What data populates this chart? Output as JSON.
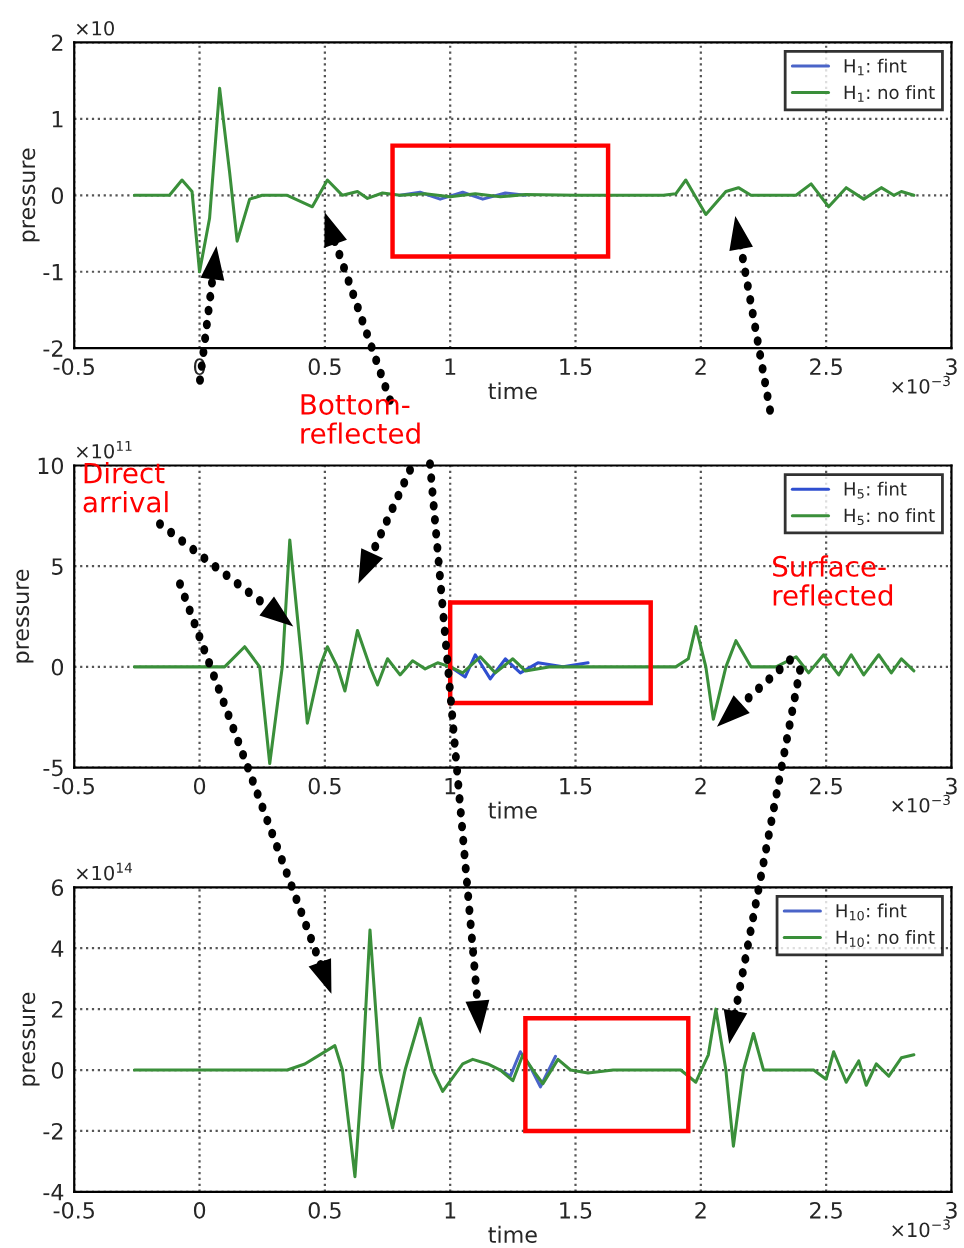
{
  "chart_data": [
    {
      "type": "line",
      "xlabel": "time",
      "ylabel": "pressure",
      "xlim": [
        -0.5,
        3
      ],
      "xticks": [
        -0.5,
        0,
        0.5,
        1,
        1.5,
        2,
        2.5,
        3
      ],
      "ylim": [
        -2,
        2
      ],
      "yticks": [
        -2,
        -1,
        0,
        1,
        2
      ],
      "grid": true,
      "legend": "top right",
      "line_style": "solid",
      "annotations": [
        "×10",
        "×10$^{−3}$"
      ],
      "series": [
        {
          "name": "H$_{1}$: fint",
          "color": "#4a64c8",
          "x": [
            0.8,
            0.88,
            0.96,
            1.05,
            1.13,
            1.22,
            1.3
          ],
          "values": [
            0,
            0.04,
            -0.05,
            0.04,
            -0.05,
            0.03,
            0
          ]
        },
        {
          "name": "H$_{1}$: no fint",
          "color": "#3a8f3a",
          "x": [
            -0.26,
            -0.12,
            -0.07,
            -0.03,
            0.0,
            0.04,
            0.08,
            0.12,
            0.15,
            0.2,
            0.25,
            0.35,
            0.45,
            0.51,
            0.57,
            0.63,
            0.67,
            0.73,
            0.8,
            0.9,
            1.0,
            1.1,
            1.2,
            1.3,
            1.5,
            1.7,
            1.85,
            1.9,
            1.94,
            2.02,
            2.1,
            2.15,
            2.2,
            2.3,
            2.38,
            2.44,
            2.51,
            2.58,
            2.65,
            2.72,
            2.77,
            2.8,
            2.85
          ],
          "values": [
            0,
            0,
            0.2,
            0.05,
            -1.0,
            -0.3,
            1.4,
            0.3,
            -0.6,
            -0.05,
            0,
            0,
            -0.15,
            0.2,
            0,
            0.05,
            -0.04,
            0.03,
            0,
            0.02,
            -0.02,
            0.02,
            -0.02,
            0.01,
            0,
            0,
            0,
            0.02,
            0.2,
            -0.25,
            0.05,
            0.1,
            0,
            0,
            0,
            0.15,
            -0.15,
            0.1,
            -0.05,
            0.1,
            0,
            0.05,
            0
          ]
        }
      ]
    },
    {
      "type": "line",
      "xlabel": "time",
      "ylabel": "pressure",
      "xlim": [
        -0.5,
        3
      ],
      "xticks": [
        -0.5,
        0,
        0.5,
        1,
        1.5,
        2,
        2.5,
        3
      ],
      "ylim": [
        -5,
        10
      ],
      "yticks": [
        -5,
        0,
        5,
        10
      ],
      "grid": true,
      "legend": "top right",
      "line_style": "solid",
      "annotations": [
        "×10$^{11}$",
        "×10$^{−3}$",
        "Direct\narrival",
        "Bottom-\nreflected",
        "Surface-\nreflected"
      ],
      "series": [
        {
          "name": "H$_{5}$: fint",
          "color": "#2f4fd0",
          "x": [
            1.0,
            1.06,
            1.1,
            1.16,
            1.22,
            1.28,
            1.35,
            1.45,
            1.55
          ],
          "values": [
            0,
            -0.5,
            0.6,
            -0.6,
            0.4,
            -0.3,
            0.2,
            0,
            0.2
          ]
        },
        {
          "name": "H$_{5}$: no fint",
          "color": "#3a8f3a",
          "x": [
            -0.26,
            0.1,
            0.18,
            0.24,
            0.28,
            0.33,
            0.36,
            0.41,
            0.43,
            0.48,
            0.51,
            0.55,
            0.58,
            0.63,
            0.68,
            0.71,
            0.75,
            0.8,
            0.85,
            0.9,
            0.95,
            1.0,
            1.05,
            1.12,
            1.18,
            1.25,
            1.3,
            1.4,
            1.6,
            1.9,
            1.95,
            1.98,
            2.02,
            2.05,
            2.1,
            2.14,
            2.2,
            2.3,
            2.38,
            2.43,
            2.49,
            2.55,
            2.6,
            2.65,
            2.71,
            2.76,
            2.8,
            2.85
          ],
          "values": [
            0,
            0,
            1.0,
            0,
            -4.8,
            0,
            6.3,
            0,
            -2.8,
            0,
            1.0,
            0,
            -1.2,
            1.8,
            0,
            -0.9,
            0.4,
            -0.4,
            0.3,
            -0.1,
            0.2,
            0,
            -0.3,
            0.5,
            -0.3,
            0.4,
            -0.2,
            0,
            0,
            0,
            0.4,
            2.0,
            0,
            -2.6,
            0,
            1.3,
            0,
            0,
            0.5,
            -0.3,
            0.6,
            -0.4,
            0.6,
            -0.4,
            0.6,
            -0.3,
            0.4,
            -0.2
          ]
        }
      ]
    },
    {
      "type": "line",
      "xlabel": "time",
      "ylabel": "pressure",
      "xlim": [
        -0.5,
        3
      ],
      "xticks": [
        -0.5,
        0,
        0.5,
        1,
        1.5,
        2,
        2.5,
        3
      ],
      "ylim": [
        -4,
        6
      ],
      "yticks": [
        -4,
        -2,
        0,
        2,
        4,
        6
      ],
      "grid": true,
      "legend": "top right",
      "line_style": "solid",
      "annotations": [
        "×10$^{14}$",
        "×10$^{−3}$"
      ],
      "series": [
        {
          "name": "H$_{10}$: fint",
          "color": "#4a64c8",
          "x": [
            1.2,
            1.24,
            1.28,
            1.32,
            1.36,
            1.42
          ],
          "values": [
            0,
            -0.2,
            0.6,
            0.1,
            -0.55,
            0.45
          ]
        },
        {
          "name": "H$_{10}$: no fint",
          "color": "#3a8f3a",
          "x": [
            -0.26,
            0.35,
            0.42,
            0.54,
            0.57,
            0.62,
            0.65,
            0.68,
            0.72,
            0.77,
            0.82,
            0.88,
            0.93,
            0.97,
            1.05,
            1.09,
            1.15,
            1.2,
            1.25,
            1.29,
            1.33,
            1.37,
            1.43,
            1.48,
            1.55,
            1.65,
            1.8,
            1.92,
            1.98,
            2.03,
            2.06,
            2.1,
            2.13,
            2.17,
            2.21,
            2.25,
            2.3,
            2.45,
            2.5,
            2.53,
            2.58,
            2.63,
            2.66,
            2.7,
            2.75,
            2.8,
            2.85
          ],
          "values": [
            0,
            0,
            0.2,
            0.8,
            0,
            -3.5,
            0,
            4.6,
            0,
            -1.9,
            0,
            1.7,
            0,
            -0.7,
            0.2,
            0.35,
            0.2,
            0,
            -0.35,
            0.5,
            0,
            -0.45,
            0.35,
            0,
            -0.1,
            0,
            0,
            0,
            -0.4,
            0.5,
            2.0,
            0,
            -2.5,
            0,
            1.2,
            0,
            0,
            0,
            -0.3,
            0.6,
            -0.4,
            0.3,
            -0.5,
            0.2,
            -0.2,
            0.4,
            0.5
          ]
        }
      ]
    }
  ]
}
